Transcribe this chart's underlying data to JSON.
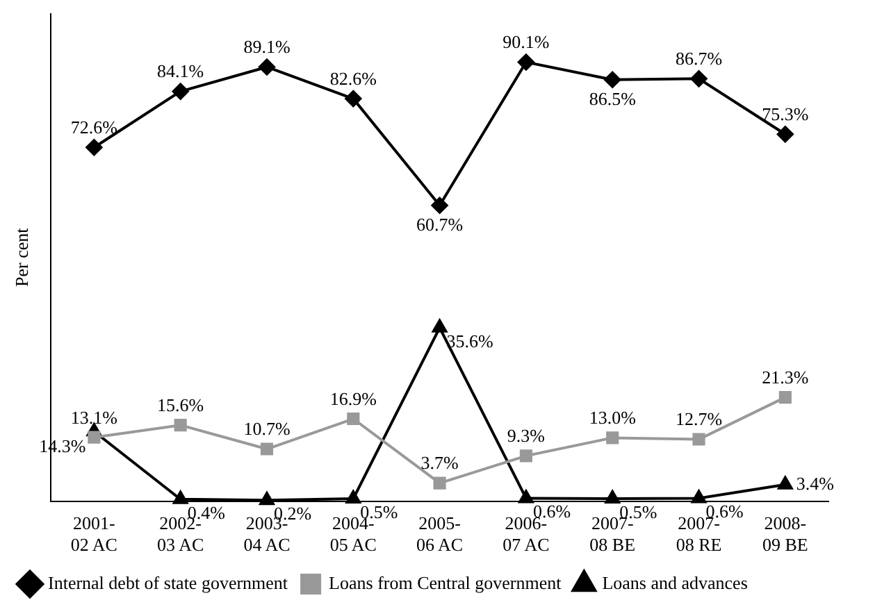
{
  "chart_data": {
    "type": "line",
    "ylabel": "Per cent",
    "categories": [
      "2001-\n02 AC",
      "2002-\n03 AC",
      "2003-\n04 AC",
      "2004-\n05 AC",
      "2005-\n06 AC",
      "2006-\n07 AC",
      "2007-\n08 BE",
      "2007-\n08 RE",
      "2008-\n09 BE"
    ],
    "series": [
      {
        "name": "Internal debt of state government",
        "color": "#000000",
        "marker": "diamond",
        "values": [
          72.6,
          84.1,
          89.1,
          82.6,
          60.7,
          90.1,
          86.5,
          86.7,
          75.3
        ],
        "value_labels": [
          "72.6%",
          "84.1%",
          "89.1%",
          "82.6%",
          "60.7%",
          "90.1%",
          "86.5%",
          "86.7%",
          "75.3%"
        ]
      },
      {
        "name": "Loans from Central government",
        "color": "#999999",
        "marker": "square",
        "values": [
          13.1,
          15.6,
          10.7,
          16.9,
          3.7,
          9.3,
          13.0,
          12.7,
          21.3
        ],
        "value_labels": [
          "13.1%",
          "15.6%",
          "10.7%",
          "16.9%",
          "3.7%",
          "9.3%",
          "13.0%",
          "12.7%",
          "21.3%"
        ]
      },
      {
        "name": "Loans and advances",
        "color": "#000000",
        "marker": "triangle",
        "values": [
          14.3,
          0.4,
          0.2,
          0.5,
          35.6,
          0.6,
          0.5,
          0.6,
          3.4
        ],
        "value_labels": [
          "14.3%",
          "0.4%",
          "0.2%",
          "0.5%",
          "35.6%",
          "0.6%",
          "0.5%",
          "0.6%",
          "3.4%"
        ]
      }
    ],
    "legend": "bottom",
    "grid": false,
    "tick_labels": "x"
  }
}
